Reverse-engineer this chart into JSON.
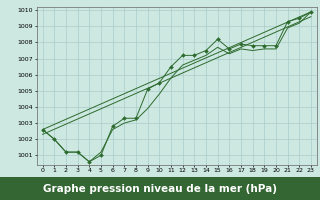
{
  "background_color": "#cce8e0",
  "grid_color": "#aacccc",
  "line_color": "#2d6a2d",
  "title": "Graphe pression niveau de la mer (hPa)",
  "title_fontsize": 7.5,
  "xlim": [
    -0.5,
    23.5
  ],
  "ylim": [
    1000.4,
    1010.2
  ],
  "yticks": [
    1001,
    1002,
    1003,
    1004,
    1005,
    1006,
    1007,
    1008,
    1009,
    1010
  ],
  "xticks": [
    0,
    1,
    2,
    3,
    4,
    5,
    6,
    7,
    8,
    9,
    10,
    11,
    12,
    13,
    14,
    15,
    16,
    17,
    18,
    19,
    20,
    21,
    22,
    23
  ],
  "series1_x": [
    0,
    1,
    2,
    3,
    4,
    5,
    6,
    7,
    8,
    9,
    10,
    11,
    12,
    13,
    14,
    15,
    16,
    17,
    18,
    19,
    20,
    21,
    22,
    23
  ],
  "series1_y": [
    1002.6,
    1002.0,
    1001.2,
    1001.2,
    1000.6,
    1001.0,
    1002.8,
    1003.3,
    1003.3,
    1005.1,
    1005.5,
    1006.5,
    1007.2,
    1007.2,
    1007.5,
    1008.2,
    1007.6,
    1007.9,
    1007.8,
    1007.8,
    1007.8,
    1009.3,
    1009.5,
    1009.9
  ],
  "series2_x": [
    0,
    1,
    2,
    3,
    4,
    5,
    6,
    7,
    8,
    9,
    10,
    11,
    12,
    13,
    14,
    15,
    16,
    17,
    18,
    19,
    20,
    21,
    22,
    23
  ],
  "series2_y": [
    1002.6,
    1002.0,
    1001.2,
    1001.2,
    1000.6,
    1001.2,
    1002.6,
    1003.0,
    1003.2,
    1003.9,
    1004.8,
    1005.8,
    1006.6,
    1006.9,
    1007.2,
    1007.7,
    1007.3,
    1007.6,
    1007.5,
    1007.6,
    1007.6,
    1008.9,
    1009.2,
    1009.9
  ],
  "trend1_x": [
    0,
    23
  ],
  "trend1_y": [
    1002.6,
    1009.9
  ],
  "trend2_x": [
    0,
    23
  ],
  "trend2_y": [
    1002.3,
    1009.6
  ],
  "title_bg": "#336633",
  "title_fg": "white"
}
